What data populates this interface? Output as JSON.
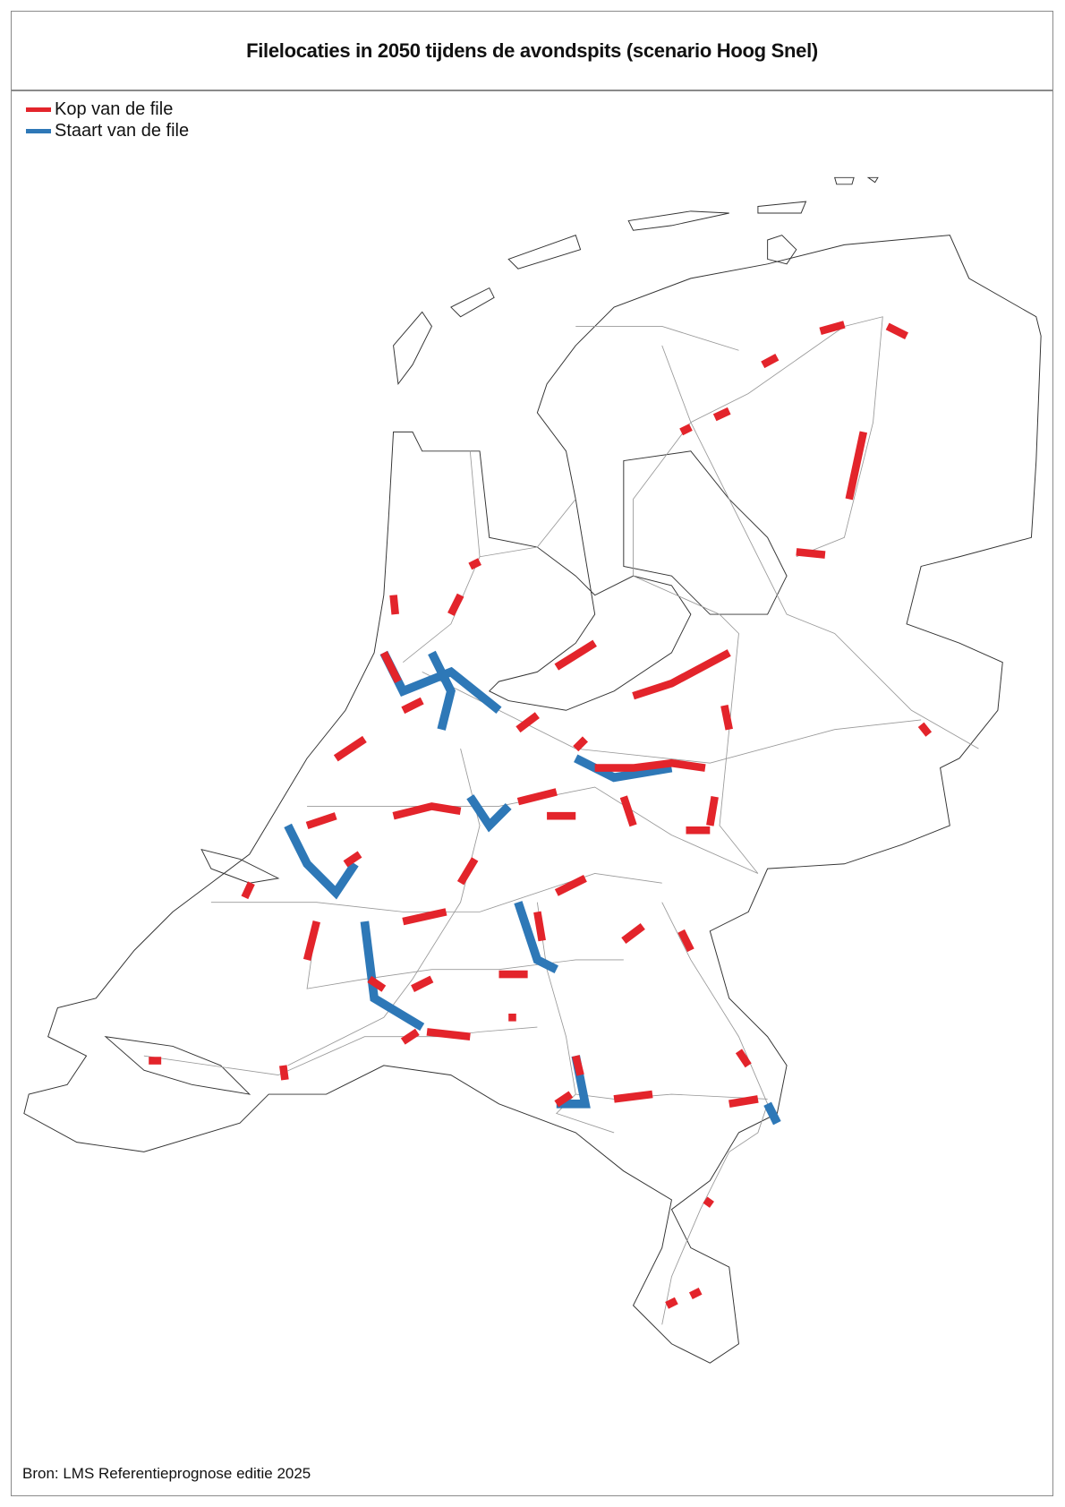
{
  "title": "Filelocaties in 2050 tijdens de avondspits (scenario Hoog Snel)",
  "legend": [
    {
      "label": "Kop van de file",
      "color": "#e3242b"
    },
    {
      "label": "Staart van de file",
      "color": "#2e78b7"
    }
  ],
  "source": "Bron: LMS Referentieprognose editie 2025"
}
